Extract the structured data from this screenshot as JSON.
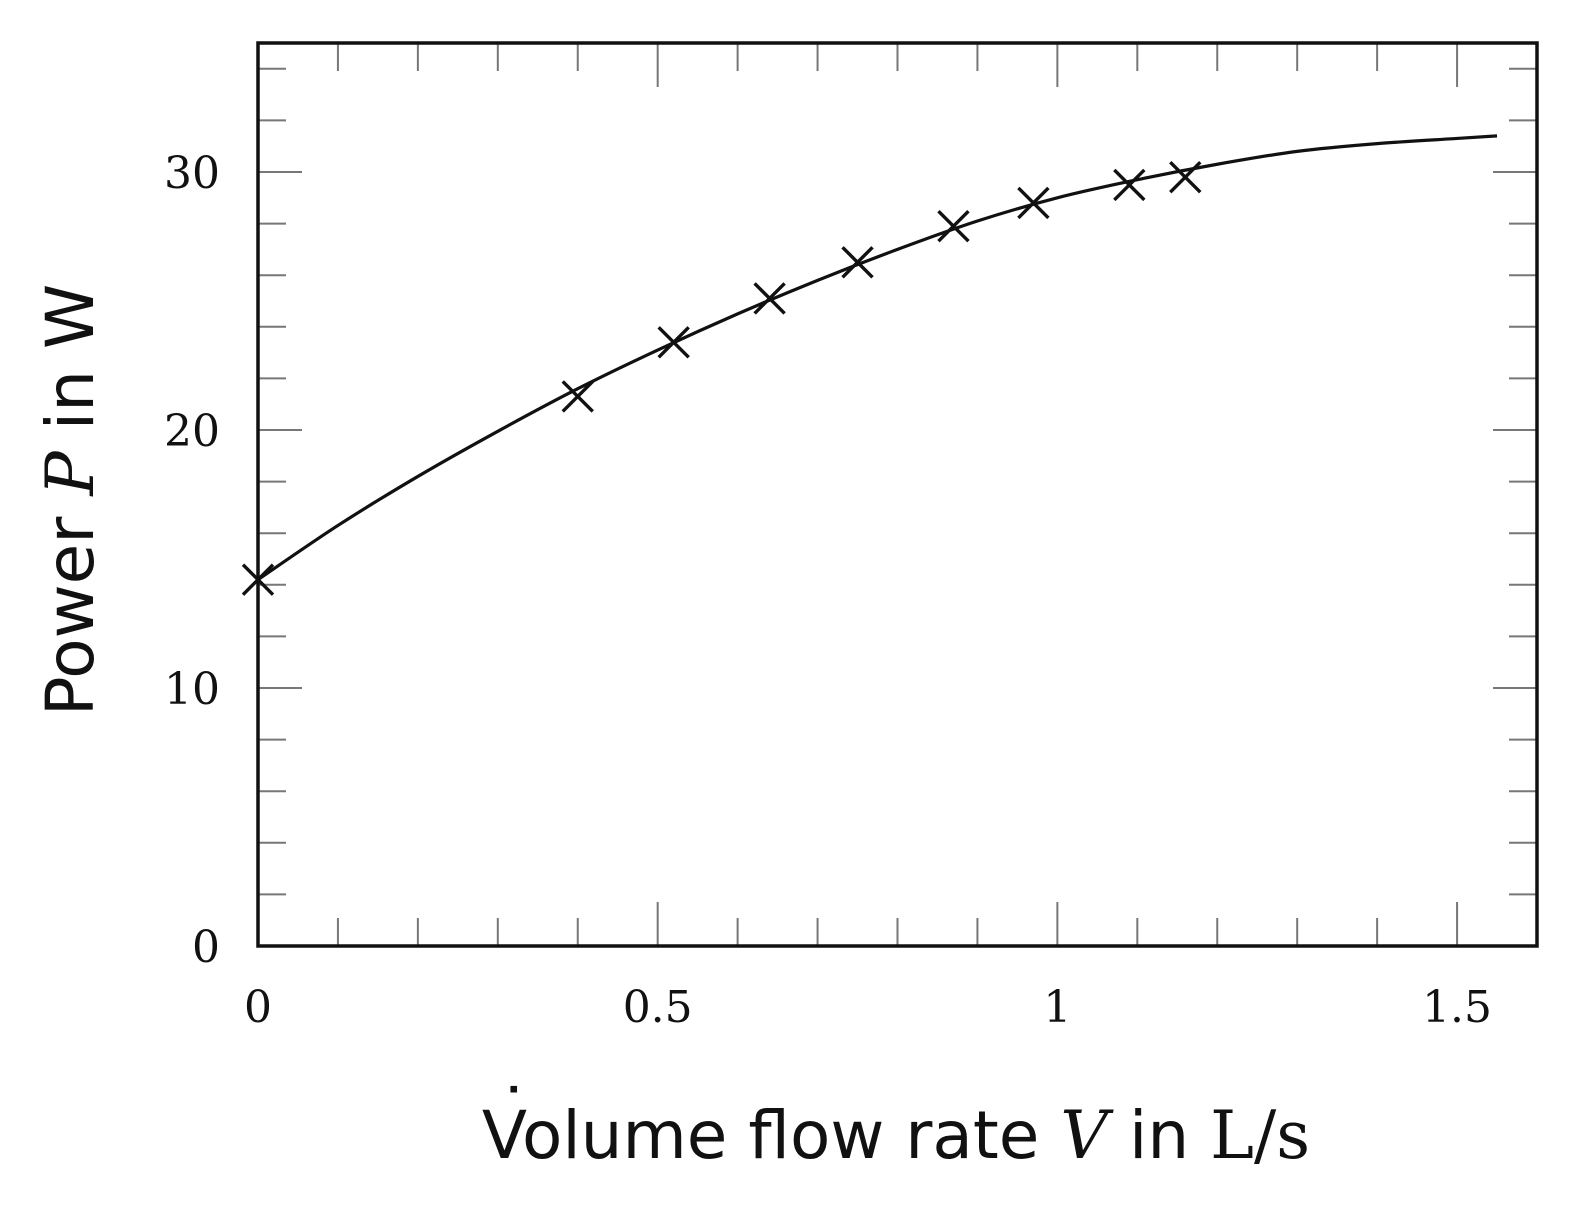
{
  "chart_data": {
    "type": "scatter",
    "title": "",
    "xlabel": {
      "prefix": "Volume flow rate ",
      "symbol": "V",
      "dot": "˙",
      "mid": " in ",
      "unit": "L/s"
    },
    "ylabel": {
      "prefix": "Power ",
      "symbol": "P",
      "mid": " in ",
      "unit": "W"
    },
    "xlim": [
      0,
      1.6
    ],
    "ylim": [
      0,
      35
    ],
    "xticks": [
      0,
      0.5,
      1,
      1.5
    ],
    "xtick_labels": [
      "0",
      "0.5",
      "1",
      "1.5"
    ],
    "yticks": [
      0,
      10,
      20,
      30
    ],
    "ytick_labels": [
      "0",
      "10",
      "20",
      "30"
    ],
    "x_minor_step": 0.1,
    "y_minor_step": 2,
    "grid": false,
    "series": [
      {
        "kind": "markers",
        "marker": "x",
        "x": [
          0,
          0.4,
          0.52,
          0.64,
          0.75,
          0.87,
          0.97,
          1.09,
          1.16
        ],
        "y": [
          14.2,
          21.3,
          23.4,
          25.1,
          26.5,
          27.9,
          28.8,
          29.5,
          29.8
        ]
      },
      {
        "kind": "fit-line",
        "x": [
          0,
          0.1,
          0.2,
          0.3,
          0.4,
          0.5,
          0.6,
          0.7,
          0.8,
          0.9,
          1.0,
          1.1,
          1.2,
          1.3,
          1.4,
          1.5,
          1.55
        ],
        "y": [
          14.2,
          16.3,
          18.2,
          19.95,
          21.6,
          23.1,
          24.5,
          25.8,
          27.0,
          28.1,
          29.0,
          29.7,
          30.3,
          30.8,
          31.1,
          31.3,
          31.4
        ]
      }
    ],
    "colors": {
      "line": "#111111",
      "marker": "#111111",
      "frame": "#111111",
      "tick": "#777777"
    }
  }
}
